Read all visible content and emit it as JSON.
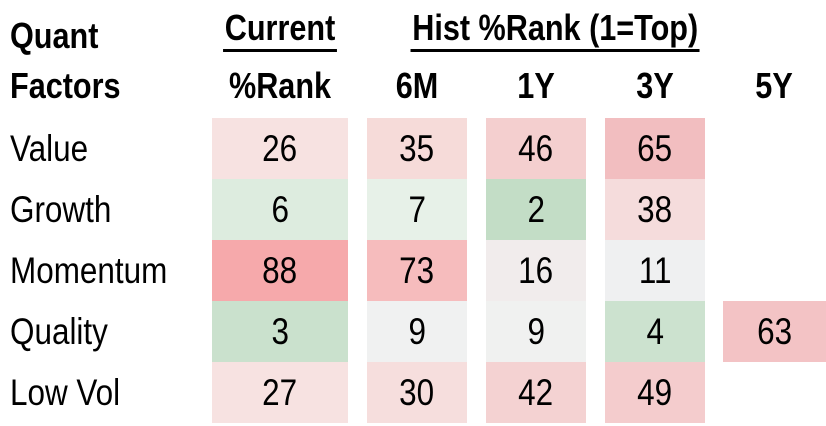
{
  "title_block": {
    "line1": "Quant",
    "line2": "Factors"
  },
  "headers": {
    "current": "Current",
    "hist": "Hist %Rank (1=Top)",
    "col_current": "%Rank",
    "col_hist": [
      "6M",
      "1Y",
      "3Y",
      "5Y"
    ]
  },
  "colors": {
    "text": "#000000",
    "background": "#ffffff",
    "underline": "#000000"
  },
  "chart_data": {
    "type": "heatmap",
    "title": "Quant Factors — Current and Historical %Rank (1=Top)",
    "rows": [
      "Value",
      "Growth",
      "Momentum",
      "Quality",
      "Low Vol"
    ],
    "columns": [
      "Current %Rank",
      "6M",
      "1Y",
      "3Y",
      "5Y"
    ],
    "values": [
      [
        26,
        35,
        46,
        65,
        null
      ],
      [
        6,
        7,
        2,
        38,
        null
      ],
      [
        88,
        73,
        16,
        11,
        null
      ],
      [
        3,
        9,
        9,
        4,
        63
      ],
      [
        27,
        30,
        42,
        49,
        null
      ]
    ],
    "cell_colors": [
      [
        "#f7e2e1",
        "#f6dbd9",
        "#f4cfcf",
        "#f2bec0",
        null
      ],
      [
        "#ddecdf",
        "#e7f1e8",
        "#c3ddc6",
        "#f5dcdc",
        null
      ],
      [
        "#f6a9ab",
        "#f6bcbd",
        "#f1ecec",
        "#eff0f1",
        null
      ],
      [
        "#cae1cd",
        "#f0f1f1",
        "#f0f1f0",
        "#cce2cf",
        "#f3c3c5"
      ],
      [
        "#f7e2e1",
        "#f6dedd",
        "#f4d2d2",
        "#f4cccd",
        null
      ]
    ],
    "layout_hints": {
      "color_scale": "green = low %rank (top), white = mid, red = high %rank",
      "grid": "off",
      "legend": "none"
    }
  }
}
